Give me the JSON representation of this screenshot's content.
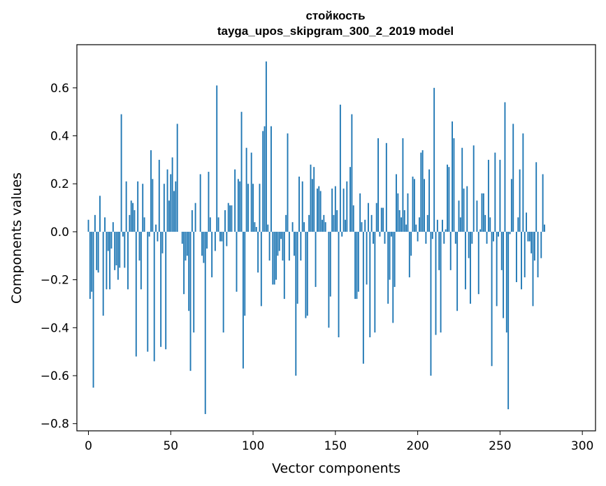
{
  "chart_data": {
    "type": "bar",
    "title": "стойкость",
    "subtitle": "tayga_upos_skipgram_300_2_2019 model",
    "xlabel": "Vector components",
    "ylabel": "Components values",
    "xlim": [
      -7,
      308
    ],
    "ylim": [
      -0.83,
      0.78
    ],
    "xticks": [
      0,
      50,
      100,
      150,
      200,
      250,
      300
    ],
    "xtick_labels": [
      "0",
      "50",
      "100",
      "150",
      "200",
      "250",
      "300"
    ],
    "yticks": [
      -0.8,
      -0.6,
      -0.4,
      -0.2,
      0.0,
      0.2,
      0.4,
      0.6
    ],
    "ytick_labels": [
      "−0.8",
      "−0.6",
      "−0.4",
      "−0.2",
      "0.0",
      "0.2",
      "0.4",
      "0.6"
    ],
    "grid": false,
    "bar_color": "#1f77b4",
    "x_start": 0,
    "values": [
      0.05,
      -0.28,
      -0.25,
      -0.65,
      0.07,
      -0.16,
      -0.17,
      0.15,
      0.0,
      -0.35,
      0.06,
      -0.24,
      -0.08,
      -0.24,
      -0.07,
      0.04,
      -0.16,
      -0.14,
      -0.2,
      -0.15,
      0.49,
      -0.02,
      -0.15,
      0.21,
      -0.24,
      0.07,
      0.13,
      0.12,
      0.09,
      -0.52,
      0.21,
      -0.12,
      -0.24,
      0.2,
      0.06,
      0.0,
      -0.5,
      -0.02,
      0.34,
      0.22,
      -0.54,
      0.03,
      -0.04,
      0.3,
      -0.48,
      -0.09,
      0.2,
      -0.49,
      0.26,
      0.13,
      0.24,
      0.31,
      0.17,
      0.21,
      0.45,
      0.0,
      0.0,
      -0.05,
      -0.26,
      -0.12,
      -0.1,
      -0.33,
      -0.58,
      0.09,
      -0.42,
      0.12,
      0.0,
      0.0,
      0.24,
      -0.1,
      -0.13,
      -0.76,
      -0.07,
      0.25,
      0.06,
      -0.19,
      0.0,
      -0.08,
      0.61,
      0.06,
      -0.04,
      -0.04,
      -0.42,
      0.09,
      -0.06,
      0.12,
      0.11,
      0.11,
      0.0,
      0.26,
      -0.25,
      0.22,
      0.21,
      0.5,
      -0.57,
      -0.35,
      0.35,
      0.2,
      0.0,
      0.33,
      0.2,
      0.04,
      0.02,
      -0.17,
      0.2,
      -0.31,
      0.42,
      0.44,
      0.71,
      0.03,
      -0.12,
      0.44,
      -0.22,
      -0.22,
      -0.2,
      -0.1,
      -0.08,
      -0.03,
      -0.12,
      -0.28,
      0.07,
      0.41,
      -0.12,
      0.0,
      0.04,
      -0.1,
      -0.6,
      -0.3,
      0.23,
      -0.12,
      0.21,
      0.04,
      -0.36,
      -0.35,
      0.07,
      0.28,
      0.22,
      0.27,
      -0.23,
      0.18,
      0.19,
      0.17,
      0.05,
      0.07,
      0.04,
      0.0,
      -0.4,
      -0.27,
      0.18,
      0.07,
      0.19,
      0.09,
      -0.44,
      0.53,
      -0.02,
      0.18,
      0.05,
      0.21,
      0.0,
      0.27,
      0.49,
      0.11,
      -0.28,
      -0.28,
      -0.25,
      0.16,
      0.04,
      -0.55,
      0.05,
      -0.22,
      0.12,
      -0.44,
      0.07,
      -0.05,
      -0.42,
      0.12,
      0.39,
      -0.02,
      0.1,
      0.1,
      -0.05,
      0.37,
      -0.3,
      -0.2,
      -0.02,
      -0.38,
      -0.23,
      0.24,
      0.16,
      0.09,
      0.06,
      0.39,
      0.09,
      0.03,
      0.16,
      -0.19,
      -0.1,
      0.23,
      0.22,
      0.03,
      -0.04,
      0.06,
      0.33,
      0.34,
      0.22,
      -0.05,
      0.07,
      0.26,
      -0.6,
      -0.03,
      0.6,
      -0.43,
      0.05,
      -0.16,
      -0.42,
      0.05,
      -0.05,
      0.01,
      0.28,
      0.27,
      -0.16,
      0.46,
      0.39,
      -0.05,
      -0.33,
      0.13,
      0.06,
      0.35,
      0.18,
      -0.24,
      0.19,
      -0.11,
      -0.3,
      -0.05,
      0.36,
      0.0,
      0.13,
      -0.26,
      0.01,
      0.16,
      0.16,
      0.07,
      -0.05,
      0.3,
      0.06,
      -0.56,
      -0.04,
      0.33,
      -0.31,
      -0.02,
      0.3,
      -0.16,
      -0.36,
      0.54,
      -0.42,
      -0.74,
      -0.01,
      0.22,
      0.45,
      0.0,
      -0.21,
      0.06,
      0.26,
      -0.24,
      0.41,
      -0.19,
      0.08,
      -0.04,
      -0.04,
      -0.09,
      -0.31,
      -0.12,
      0.29,
      -0.19,
      0.0,
      -0.11,
      0.24,
      0.03
    ]
  }
}
